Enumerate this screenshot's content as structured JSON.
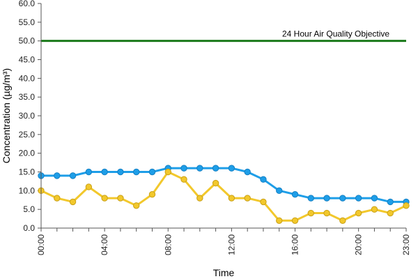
{
  "chart_data": {
    "type": "line",
    "title": "",
    "xlabel": "Time",
    "ylabel": "Concentration (µg/m³)",
    "ylim": [
      0,
      60
    ],
    "yticks": [
      "0.0",
      "5.0",
      "10.0",
      "15.0",
      "20.0",
      "25.0",
      "30.0",
      "35.0",
      "40.0",
      "45.0",
      "50.0",
      "55.0",
      "60.0"
    ],
    "x": [
      "00:00",
      "01:00",
      "02:00",
      "03:00",
      "04:00",
      "05:00",
      "06:00",
      "07:00",
      "08:00",
      "09:00",
      "10:00",
      "11:00",
      "12:00",
      "13:00",
      "14:00",
      "15:00",
      "16:00",
      "17:00",
      "18:00",
      "19:00",
      "20:00",
      "21:00",
      "22:00",
      "23:00"
    ],
    "xtick_labels": [
      "00:00",
      "04:00",
      "08:00",
      "12:00",
      "16:00",
      "20:00",
      "23:00"
    ],
    "grid": false,
    "legend": "none",
    "series": [
      {
        "color": "#1e9ee8",
        "values": [
          14,
          14,
          14,
          15,
          15,
          15,
          15,
          15,
          16,
          16,
          16,
          16,
          16,
          15,
          13,
          10,
          9,
          8,
          8,
          8,
          8,
          8,
          7,
          7
        ]
      },
      {
        "color": "#f2c82c",
        "values": [
          10,
          8,
          7,
          11,
          8,
          8,
          6,
          9,
          15,
          13,
          8,
          12,
          8,
          8,
          7,
          2,
          2,
          4,
          4,
          2,
          4,
          5,
          4,
          6
        ]
      }
    ],
    "reference_line": {
      "value": 50,
      "label": "24 Hour Air Quality Objective",
      "color": "#1a7a1a"
    }
  }
}
